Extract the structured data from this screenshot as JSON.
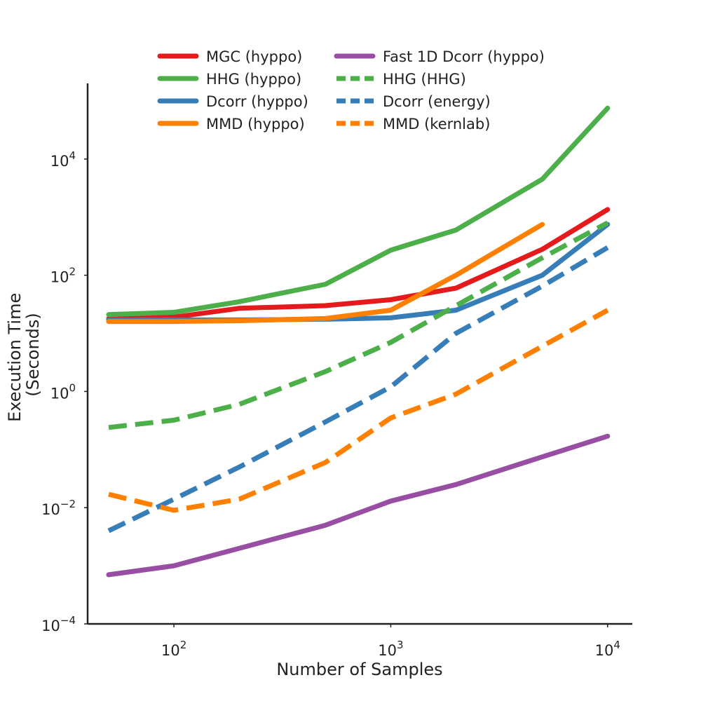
{
  "chart_data": {
    "type": "line",
    "xlabel": "Number of Samples",
    "ylabel_lines": [
      "Execution Time",
      "(Seconds)"
    ],
    "x_scale": "log",
    "y_scale": "log",
    "xlim": [
      40,
      13000
    ],
    "ylim": [
      0.0001,
      200000
    ],
    "grid": false,
    "legend_position": "top",
    "x_ticks": [
      {
        "value": 100,
        "base": "10",
        "exp": "2"
      },
      {
        "value": 1000,
        "base": "10",
        "exp": "3"
      },
      {
        "value": 10000,
        "base": "10",
        "exp": "4"
      }
    ],
    "y_ticks": [
      {
        "value": 0.0001,
        "base": "10",
        "exp": "−4"
      },
      {
        "value": 0.01,
        "base": "10",
        "exp": "−2"
      },
      {
        "value": 1,
        "base": "10",
        "exp": "0"
      },
      {
        "value": 100,
        "base": "10",
        "exp": "2"
      },
      {
        "value": 10000,
        "base": "10",
        "exp": "4"
      }
    ],
    "series": [
      {
        "name": "MGC (hyppo)",
        "color": "#e41a1c",
        "dashed": false,
        "x": [
          50,
          100,
          200,
          500,
          1000,
          2000,
          5000,
          10000
        ],
        "y": [
          18,
          19,
          27,
          30,
          38,
          60,
          280,
          1350
        ]
      },
      {
        "name": "HHG (hyppo)",
        "color": "#4daf4a",
        "dashed": false,
        "x": [
          50,
          100,
          200,
          500,
          1000,
          2000,
          5000,
          10000
        ],
        "y": [
          21,
          23,
          35,
          70,
          270,
          600,
          4500,
          75000
        ]
      },
      {
        "name": "Dcorr (hyppo)",
        "color": "#377eb8",
        "dashed": false,
        "x": [
          50,
          100,
          200,
          500,
          1000,
          2000,
          5000,
          10000
        ],
        "y": [
          17,
          17,
          17,
          17.5,
          18.5,
          25,
          100,
          750
        ]
      },
      {
        "name": "MMD (hyppo)",
        "color": "#ff7f00",
        "dashed": false,
        "x": [
          50,
          100,
          200,
          500,
          1000,
          2000,
          5000
        ],
        "y": [
          16,
          16,
          16.5,
          18,
          25,
          100,
          750
        ]
      },
      {
        "name": "Fast 1D Dcorr (hyppo)",
        "color": "#984ea3",
        "dashed": false,
        "x": [
          50,
          100,
          200,
          500,
          1000,
          2000,
          5000,
          10000
        ],
        "y": [
          0.0007,
          0.001,
          0.002,
          0.005,
          0.013,
          0.025,
          0.075,
          0.17
        ]
      },
      {
        "name": "HHG (HHG)",
        "color": "#4daf4a",
        "dashed": true,
        "x": [
          50,
          100,
          200,
          500,
          1000,
          2000,
          5000,
          10000
        ],
        "y": [
          0.24,
          0.32,
          0.6,
          2.2,
          7,
          30,
          200,
          800
        ]
      },
      {
        "name": "Dcorr (energy)",
        "color": "#377eb8",
        "dashed": true,
        "x": [
          50,
          100,
          200,
          500,
          1000,
          2000,
          5000,
          10000
        ],
        "y": [
          0.004,
          0.014,
          0.05,
          0.3,
          1.2,
          10,
          65,
          300
        ]
      },
      {
        "name": "MMD (kernlab)",
        "color": "#ff7f00",
        "dashed": true,
        "x": [
          50,
          100,
          200,
          500,
          1000,
          2000,
          5000,
          10000
        ],
        "y": [
          0.017,
          0.009,
          0.014,
          0.06,
          0.35,
          0.9,
          6,
          25
        ]
      }
    ]
  }
}
